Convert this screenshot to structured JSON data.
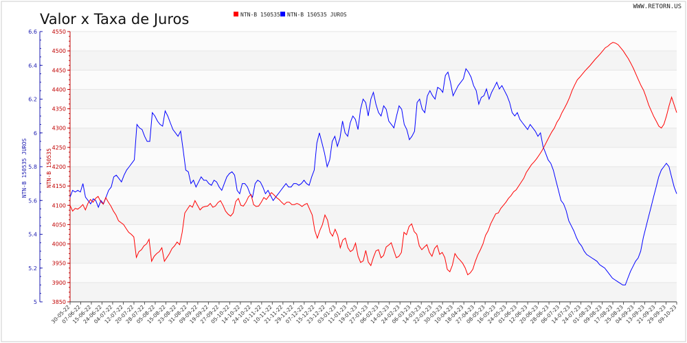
{
  "header": {
    "title": "Valor x Taxa de Juros",
    "site": "WWW.RETORN.US"
  },
  "legend": [
    {
      "label": "NTN-B 150535",
      "color": "#ff0000"
    },
    {
      "label": "NTN-B 150535 JUROS",
      "color": "#0000ff"
    }
  ],
  "chart_data": {
    "type": "line",
    "title": "Valor x Taxa de Juros",
    "y_left_label": "NTN-B 150535 JUROS",
    "y_right_label": "NTN-B 150535",
    "y_left_range": [
      5,
      6.6
    ],
    "y_left_ticks": [
      5,
      5.2,
      5.4,
      5.6,
      5.8,
      6,
      6.2,
      6.4,
      6.6
    ],
    "y_right_range": [
      3850,
      4550
    ],
    "y_right_ticks": [
      3850,
      3900,
      3950,
      4000,
      4050,
      4100,
      4150,
      4200,
      4250,
      4300,
      4350,
      4400,
      4450,
      4500,
      4550
    ],
    "grid": true,
    "legend_position": "top-center",
    "x_tick_labels": [
      "30-05-22",
      "07-06-22",
      "15-06-22",
      "24-06-22",
      "04-07-22",
      "12-07-22",
      "20-07-22",
      "28-07-22",
      "05-08-22",
      "15-08-22",
      "23-08-22",
      "31-08-22",
      "09-09-22",
      "19-09-22",
      "27-09-22",
      "05-10-22",
      "14-10-22",
      "24-10-22",
      "01-11-22",
      "10-11-22",
      "21-11-22",
      "29-11-22",
      "07-12-22",
      "15-12-22",
      "23-12-22",
      "03-01-23",
      "11-01-23",
      "19-01-23",
      "27-01-23",
      "06-02-23",
      "14-02-23",
      "24-02-23",
      "06-03-23",
      "14-03-23",
      "22-03-23",
      "30-03-23",
      "10-04-23",
      "18-04-23",
      "27-04-23",
      "08-05-23",
      "16-05-23",
      "24-05-23",
      "01-06-23",
      "12-06-23",
      "20-06-23",
      "28-06-23",
      "06-07-23",
      "14-07-23",
      "24-07-23",
      "01-08-23",
      "09-08-23",
      "17-08-23",
      "25-08-23",
      "04-09-23",
      "13-09-23",
      "21-09-23",
      "29-09-23",
      "09-10-23"
    ],
    "series": [
      {
        "name": "NTN-B 150535 JUROS",
        "axis": "left",
        "color": "#0000ff",
        "values": [
          5.62,
          5.66,
          5.65,
          5.66,
          5.65,
          5.7,
          5.62,
          5.6,
          5.58,
          5.61,
          5.6,
          5.56,
          5.6,
          5.58,
          5.62,
          5.66,
          5.68,
          5.74,
          5.75,
          5.73,
          5.71,
          5.75,
          5.78,
          5.8,
          5.82,
          5.84,
          6.05,
          6.03,
          6.02,
          5.98,
          5.95,
          5.95,
          6.12,
          6.1,
          6.07,
          6.05,
          6.04,
          6.13,
          6.1,
          6.06,
          6.02,
          6.0,
          5.98,
          6.01,
          5.9,
          5.78,
          5.77,
          5.7,
          5.72,
          5.68,
          5.71,
          5.74,
          5.72,
          5.72,
          5.7,
          5.69,
          5.72,
          5.71,
          5.68,
          5.66,
          5.7,
          5.74,
          5.76,
          5.77,
          5.75,
          5.66,
          5.64,
          5.7,
          5.7,
          5.68,
          5.64,
          5.62,
          5.7,
          5.72,
          5.71,
          5.68,
          5.64,
          5.66,
          5.63,
          5.6,
          5.62,
          5.64,
          5.66,
          5.68,
          5.7,
          5.68,
          5.68,
          5.7,
          5.7,
          5.69,
          5.7,
          5.72,
          5.7,
          5.69,
          5.74,
          5.78,
          5.94,
          6.0,
          5.94,
          5.88,
          5.8,
          5.84,
          5.95,
          5.98,
          5.92,
          5.97,
          6.07,
          6.0,
          5.98,
          6.06,
          6.1,
          6.08,
          6.02,
          6.14,
          6.2,
          6.18,
          6.1,
          6.2,
          6.24,
          6.17,
          6.12,
          6.1,
          6.16,
          6.14,
          6.07,
          6.05,
          6.03,
          6.1,
          6.16,
          6.14,
          6.05,
          6.02,
          5.96,
          5.98,
          6.01,
          6.18,
          6.2,
          6.14,
          6.12,
          6.22,
          6.25,
          6.22,
          6.2,
          6.27,
          6.26,
          6.24,
          6.34,
          6.36,
          6.3,
          6.22,
          6.25,
          6.28,
          6.3,
          6.32,
          6.38,
          6.36,
          6.33,
          6.28,
          6.25,
          6.17,
          6.21,
          6.22,
          6.26,
          6.2,
          6.24,
          6.27,
          6.3,
          6.26,
          6.28,
          6.25,
          6.22,
          6.18,
          6.12,
          6.1,
          6.12,
          6.08,
          6.06,
          6.04,
          6.02,
          6.05,
          6.03,
          6.01,
          5.98,
          6.0,
          5.92,
          5.88,
          5.84,
          5.82,
          5.78,
          5.72,
          5.66,
          5.6,
          5.58,
          5.54,
          5.48,
          5.45,
          5.42,
          5.38,
          5.35,
          5.33,
          5.3,
          5.28,
          5.27,
          5.26,
          5.25,
          5.24,
          5.22,
          5.21,
          5.2,
          5.18,
          5.16,
          5.14,
          5.13,
          5.12,
          5.11,
          5.1,
          5.1,
          5.14,
          5.18,
          5.21,
          5.24,
          5.26,
          5.3,
          5.38,
          5.44,
          5.5,
          5.56,
          5.62,
          5.68,
          5.74,
          5.78,
          5.8,
          5.82,
          5.8,
          5.74,
          5.68,
          5.64
        ]
      },
      {
        "name": "NTN-B 150535",
        "axis": "right",
        "color": "#ff0000",
        "values": [
          4100,
          4085,
          4092,
          4090,
          4095,
          4102,
          4088,
          4105,
          4115,
          4108,
          4118,
          4123,
          4110,
          4103,
          4120,
          4108,
          4098,
          4085,
          4075,
          4060,
          4055,
          4050,
          4040,
          4030,
          4025,
          4018,
          3965,
          3980,
          3985,
          3995,
          4000,
          4012,
          3955,
          3968,
          3975,
          3980,
          3990,
          3955,
          3965,
          3975,
          3988,
          3995,
          4005,
          3998,
          4030,
          4080,
          4090,
          4100,
          4095,
          4112,
          4100,
          4088,
          4095,
          4097,
          4098,
          4105,
          4095,
          4098,
          4107,
          4112,
          4100,
          4085,
          4077,
          4072,
          4080,
          4110,
          4118,
          4100,
          4098,
          4108,
          4122,
          4128,
          4102,
          4097,
          4098,
          4108,
          4120,
          4115,
          4124,
          4133,
          4127,
          4120,
          4115,
          4108,
          4102,
          4108,
          4108,
          4102,
          4102,
          4105,
          4102,
          4097,
          4102,
          4105,
          4090,
          4075,
          4035,
          4015,
          4035,
          4050,
          4075,
          4062,
          4030,
          4020,
          4038,
          4022,
          3990,
          4010,
          4015,
          3990,
          3980,
          3985,
          4002,
          3968,
          3952,
          3956,
          3983,
          3953,
          3944,
          3965,
          3982,
          3985,
          3964,
          3970,
          3992,
          3997,
          4003,
          3983,
          3964,
          3968,
          3978,
          4030,
          4024,
          4045,
          4052,
          4032,
          4025,
          3995,
          3985,
          3992,
          3998,
          3978,
          3968,
          3988,
          3996,
          3973,
          3978,
          3965,
          3934,
          3928,
          3945,
          3975,
          3965,
          3958,
          3950,
          3938,
          3920,
          3925,
          3934,
          3955,
          3972,
          3985,
          4000,
          4022,
          4034,
          4052,
          4065,
          4078,
          4080,
          4092,
          4100,
          4108,
          4118,
          4125,
          4135,
          4140,
          4150,
          4160,
          4170,
          4185,
          4195,
          4205,
          4212,
          4220,
          4230,
          4240,
          4252,
          4265,
          4278,
          4290,
          4300,
          4315,
          4325,
          4340,
          4352,
          4365,
          4380,
          4398,
          4412,
          4425,
          4432,
          4440,
          4448,
          4455,
          4462,
          4470,
          4478,
          4485,
          4492,
          4500,
          4508,
          4512,
          4518,
          4522,
          4520,
          4516,
          4508,
          4500,
          4490,
          4480,
          4468,
          4455,
          4440,
          4425,
          4410,
          4398,
          4380,
          4360,
          4345,
          4330,
          4318,
          4305,
          4300,
          4310,
          4332,
          4358,
          4380,
          4360,
          4340
        ]
      }
    ]
  }
}
